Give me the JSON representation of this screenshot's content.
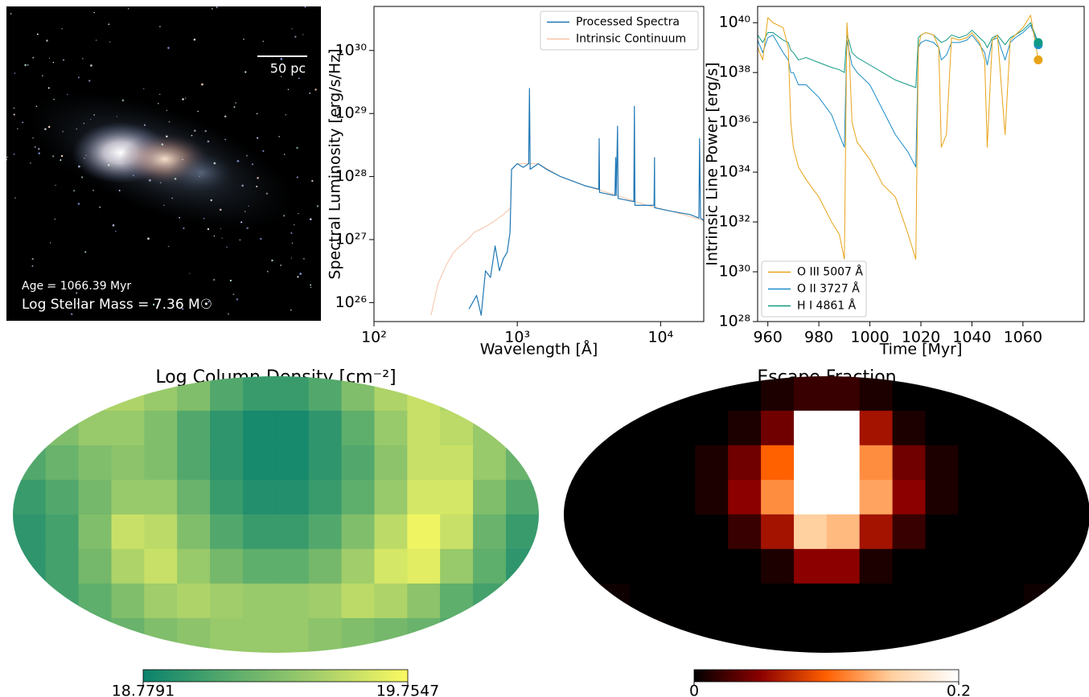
{
  "galaxy_image": {
    "scale_bar_label": "50 pc",
    "age_label": "Age = 1066.39 Myr",
    "mass_label": "Log Stellar Mass = 7.36 M☉"
  },
  "chart_data": [
    {
      "type": "line",
      "x_label": "Wavelength [Å]",
      "y_label": "Spectral Luminosity [erg/s/Hz]",
      "log_x": true,
      "log_y": true,
      "xlim": [
        100,
        20000
      ],
      "ylim": [
        5e+25,
        5e+30
      ],
      "xticks": [
        {
          "value": 100,
          "label": "10²"
        },
        {
          "value": 1000,
          "label": "10³"
        },
        {
          "value": 10000,
          "label": "10⁴"
        }
      ],
      "yticks": [
        {
          "value": 1e+26,
          "label": "10²⁶"
        },
        {
          "value": 1e+27,
          "label": "10²⁷"
        },
        {
          "value": 1e+28,
          "label": "10²⁸"
        },
        {
          "value": 1e+29,
          "label": "10²⁹"
        },
        {
          "value": 1e+30,
          "label": "10³⁰"
        }
      ],
      "legend": "upper right",
      "series": [
        {
          "name": "Processed Spectra",
          "color": "#1f77b4",
          "line_width": 1.2,
          "x": [
            460,
            520,
            560,
            600,
            650,
            700,
            750,
            800,
            850,
            890,
            912,
            1000,
            1100,
            1200,
            1216,
            1230,
            1400,
            1600,
            2000,
            3000,
            3700,
            3727,
            3750,
            4800,
            4861,
            4900,
            5007,
            5050,
            6500,
            6563,
            6620,
            9000,
            9069,
            9100,
            12000,
            16000,
            18500,
            18700,
            19000,
            20000
          ],
          "values": [
            7.9e+25,
            1.3e+26,
            6.3e+25,
            3.2e+26,
            2.5e+26,
            7.9e+26,
            3.2e+26,
            5e+26,
            6.3e+26,
            1.3e+27,
            1.3e+28,
            1.6e+28,
            1.4e+28,
            1.6e+28,
            2.5e+29,
            1.3e+28,
            1.6e+28,
            1.3e+28,
            1e+28,
            7.1e+27,
            6.3e+27,
            4e+28,
            5.6e+27,
            5e+27,
            2e+28,
            5e+27,
            6.3e+28,
            4.5e+27,
            4e+27,
            1.3e+29,
            3.5e+27,
            3.5e+27,
            2e+28,
            3.2e+27,
            2.8e+27,
            2.5e+27,
            2.2e+27,
            4e+28,
            2.2e+27,
            2e+27
          ]
        },
        {
          "name": "Intrinsic Continuum",
          "color": "#f6c3a6",
          "line_width": 1,
          "x": [
            250,
            280,
            320,
            360,
            400,
            450,
            500,
            600,
            700,
            800,
            900,
            912,
            1000,
            1200,
            1400,
            2000,
            3000,
            5000,
            8000,
            12000,
            20000
          ],
          "values": [
            6.3e+25,
            2e+26,
            4e+26,
            6.3e+26,
            7.9e+26,
            1e+27,
            1.3e+27,
            1.6e+27,
            2e+27,
            2.5e+27,
            3.2e+27,
            1.3e+28,
            1.6e+28,
            1.6e+28,
            1.6e+28,
            1e+28,
            7.1e+27,
            5e+27,
            3.5e+27,
            2.8e+27,
            2e+27
          ]
        }
      ]
    },
    {
      "type": "line",
      "x_label": "Time [Myr]",
      "y_label": "Intrinsic Line Power [erg/s]",
      "log_y": true,
      "xlim": [
        956,
        1084
      ],
      "ylim": [
        1e+28,
        4.5e+40
      ],
      "xticks": [
        960,
        980,
        1000,
        1020,
        1040,
        1060
      ],
      "yticks": [
        {
          "value": 1e+28,
          "label": "10²⁸"
        },
        {
          "value": 1e+30,
          "label": "10³⁰"
        },
        {
          "value": 1e+32,
          "label": "10³²"
        },
        {
          "value": 1e+34,
          "label": "10³⁴"
        },
        {
          "value": 1e+36,
          "label": "10³⁶"
        },
        {
          "value": 1e+38,
          "label": "10³⁸"
        },
        {
          "value": 1e+40,
          "label": "10⁴⁰"
        }
      ],
      "legend": "lower left",
      "end_markers": true,
      "x": [
        956,
        958,
        960,
        962,
        966,
        968,
        969,
        970,
        972,
        975,
        980,
        985,
        988,
        990,
        991,
        992,
        993,
        995,
        1000,
        1005,
        1010,
        1015,
        1018,
        1019,
        1020,
        1022,
        1025,
        1027,
        1028,
        1030,
        1032,
        1035,
        1038,
        1040,
        1043,
        1045,
        1046,
        1048,
        1050,
        1053,
        1055,
        1057,
        1060,
        1063,
        1066
      ],
      "series": [
        {
          "name": "O III 5007 Å",
          "color": "#e8a317",
          "line_width": 1,
          "values": [
            1e+39,
            3.2e+38,
            1.6e+40,
            1e+40,
            6.3e+39,
            1e+39,
            1e+36,
            1e+35,
            1.6e+34,
            5e+33,
            1e+33,
            1e+32,
            3.2e+31,
            3.2e+30,
            1e+40,
            3.2e+38,
            1e+36,
            1.6e+35,
            3.2e+34,
            3.2e+33,
            1e+33,
            3.2e+31,
            3.2e+30,
            1e+39,
            3.2e+39,
            4e+39,
            3.2e+39,
            1e+39,
            1e+35,
            3.2e+35,
            2.5e+39,
            2e+39,
            2.5e+39,
            4e+39,
            1.6e+39,
            3.2e+38,
            1e+35,
            2e+39,
            3.2e+39,
            3.2e+35,
            2e+39,
            3.2e+39,
            6.3e+39,
            2e+40,
            3.2e+38
          ]
        },
        {
          "name": "O II 3727 Å",
          "color": "#1c8dc7",
          "line_width": 1,
          "values": [
            2e+39,
            6.3e+38,
            2.5e+39,
            3.2e+39,
            6.3e+38,
            3.2e+38,
            1e+38,
            1e+38,
            3.2e+37,
            3.2e+37,
            1e+37,
            2e+36,
            3.2e+35,
            1e+35,
            2e+39,
            6.3e+38,
            2e+38,
            1e+38,
            3.2e+37,
            3.2e+36,
            3.2e+35,
            6.3e+34,
            1.6e+34,
            1e+39,
            1.6e+39,
            2e+39,
            1.6e+39,
            1e+39,
            3.2e+38,
            5e+38,
            1.6e+39,
            1.6e+39,
            2e+39,
            3.2e+39,
            1.3e+39,
            6.3e+38,
            2e+38,
            2e+39,
            2.5e+39,
            3.2e+38,
            1.6e+39,
            2.5e+39,
            4e+39,
            7.9e+39,
            1.3e+39
          ]
        },
        {
          "name": "H I 4861 Å",
          "color": "#109a86",
          "line_width": 1,
          "values": [
            3.2e+39,
            1.6e+39,
            4e+39,
            4e+39,
            2e+39,
            1.6e+39,
            7.9e+38,
            6.3e+38,
            3.2e+38,
            4e+38,
            2.5e+38,
            1.6e+38,
            1.3e+38,
            1e+38,
            3.2e+39,
            1.6e+39,
            6.3e+38,
            4e+38,
            2e+38,
            1e+38,
            5e+37,
            3.2e+37,
            2.5e+37,
            2.5e+39,
            3.2e+39,
            4e+39,
            3.2e+39,
            2e+39,
            1.6e+39,
            2e+39,
            3.2e+39,
            2.5e+39,
            3.2e+39,
            5e+39,
            2.5e+39,
            1.6e+39,
            1e+39,
            2.5e+39,
            3.2e+39,
            1.3e+39,
            2.5e+39,
            3.2e+39,
            5e+39,
            1e+40,
            1.6e+39
          ]
        }
      ]
    },
    {
      "type": "heatmap",
      "projection": "mollweide",
      "title": "Log Column Density [cm⁻²]",
      "clim": [
        18.7791,
        19.7547
      ],
      "cticks": [
        18.7791,
        19.7547
      ],
      "colormap": [
        "#0a826c",
        "#5aac6c",
        "#a6cf6a",
        "#fbfa62"
      ],
      "values": [
        [
          19.27,
          19.37,
          19.46,
          19.46,
          19.37,
          19.27,
          19.07,
          18.97,
          18.97,
          19.07,
          19.27,
          19.46,
          19.56,
          19.46,
          19.37,
          19.27
        ],
        [
          19.17,
          19.27,
          19.37,
          19.37,
          19.27,
          19.07,
          18.93,
          18.83,
          18.83,
          18.93,
          19.12,
          19.37,
          19.56,
          19.51,
          19.37,
          19.27
        ],
        [
          19.07,
          19.17,
          19.27,
          19.32,
          19.27,
          19.07,
          18.93,
          18.83,
          18.83,
          18.93,
          19.07,
          19.32,
          19.56,
          19.56,
          19.37,
          19.17
        ],
        [
          18.97,
          19.07,
          19.22,
          19.37,
          19.37,
          19.17,
          18.97,
          18.88,
          18.88,
          18.97,
          19.12,
          19.37,
          19.61,
          19.61,
          19.27,
          19.07
        ],
        [
          18.93,
          19.02,
          19.27,
          19.56,
          19.51,
          19.27,
          19.07,
          18.97,
          18.97,
          19.07,
          19.27,
          19.51,
          19.71,
          19.56,
          19.17,
          18.97
        ],
        [
          18.93,
          19.02,
          19.22,
          19.46,
          19.56,
          19.37,
          19.22,
          19.12,
          19.12,
          19.22,
          19.41,
          19.61,
          19.66,
          19.37,
          19.12,
          18.93
        ],
        [
          18.97,
          19.02,
          19.12,
          19.27,
          19.41,
          19.46,
          19.41,
          19.37,
          19.37,
          19.41,
          19.51,
          19.46,
          19.32,
          19.12,
          19.02,
          18.97
        ],
        [
          19.02,
          19.07,
          19.12,
          19.17,
          19.27,
          19.32,
          19.37,
          19.37,
          19.37,
          19.32,
          19.27,
          19.22,
          19.17,
          19.07,
          19.02,
          19.02
        ]
      ]
    },
    {
      "type": "heatmap",
      "projection": "mollweide",
      "title": "Escape Fraction",
      "clim": [
        0,
        0.2
      ],
      "cticks": [
        0,
        0.2
      ],
      "colormap": [
        "#000000",
        "#8c0000",
        "#ff6000",
        "#ffd0a0",
        "#ffffff"
      ],
      "values": [
        [
          0,
          0,
          0,
          0,
          0,
          0,
          0.01,
          0.02,
          0.02,
          0.01,
          0,
          0,
          0,
          0,
          0,
          0
        ],
        [
          0,
          0,
          0,
          0,
          0,
          0.01,
          0.04,
          0.2,
          0.2,
          0.06,
          0.01,
          0,
          0,
          0,
          0,
          0
        ],
        [
          0,
          0,
          0,
          0,
          0.01,
          0.04,
          0.1,
          0.2,
          0.2,
          0.12,
          0.04,
          0.01,
          0,
          0,
          0,
          0
        ],
        [
          0,
          0,
          0,
          0,
          0.01,
          0.05,
          0.12,
          0.2,
          0.2,
          0.13,
          0.05,
          0.01,
          0,
          0,
          0,
          0
        ],
        [
          0,
          0,
          0,
          0,
          0,
          0.02,
          0.06,
          0.15,
          0.14,
          0.06,
          0.02,
          0,
          0,
          0,
          0,
          0
        ],
        [
          0,
          0,
          0,
          0,
          0,
          0,
          0.01,
          0.05,
          0.05,
          0.01,
          0,
          0,
          0,
          0,
          0,
          0
        ],
        [
          0,
          0.005,
          0,
          0,
          0,
          0,
          0,
          0,
          0,
          0,
          0,
          0,
          0,
          0,
          0.005,
          0
        ],
        [
          0,
          0.01,
          0.005,
          0,
          0,
          0,
          0,
          0,
          0,
          0,
          0,
          0,
          0,
          0.005,
          0.01,
          0
        ]
      ]
    }
  ]
}
